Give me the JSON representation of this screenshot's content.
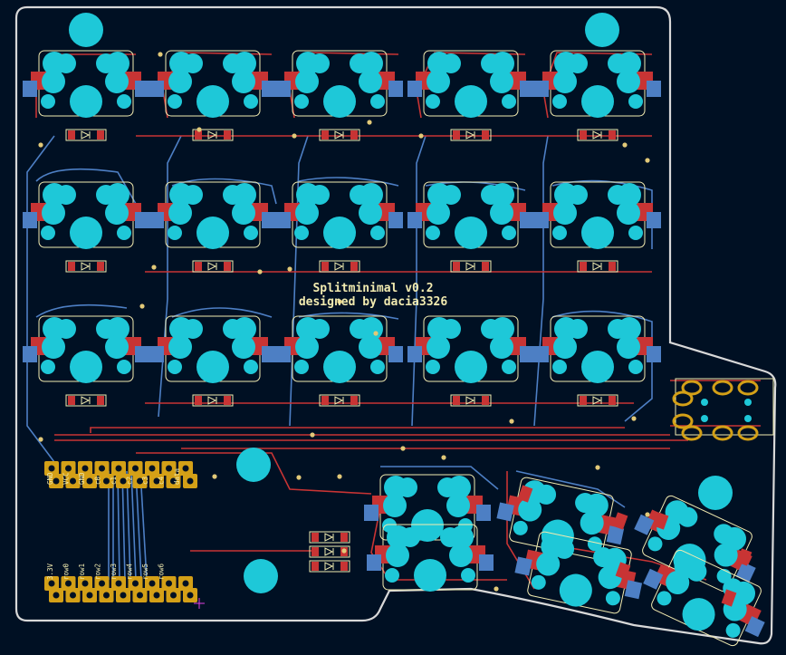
{
  "board": {
    "title_line1": "Splitminimal v0.2",
    "title_line2": "designed by dacia3326"
  },
  "connectors": {
    "top_labels": [
      "GND",
      "VCC",
      "GND",
      "c0",
      "c1",
      "c2",
      "c3",
      "c4",
      "data"
    ],
    "bottom_labels": [
      "3.3V",
      "row0",
      "row1",
      "row2",
      "row3",
      "row4",
      "row5",
      "row6"
    ]
  },
  "colors": {
    "background": "#001023",
    "board_edge": "#d8d8d8",
    "pad_cyan": "#1ec8d8",
    "copper_front": "#c83434",
    "copper_back": "#4d7fc4",
    "silkscreen": "#f2ebb0",
    "via": "#e2c978",
    "header_gold": "#d4a017"
  }
}
